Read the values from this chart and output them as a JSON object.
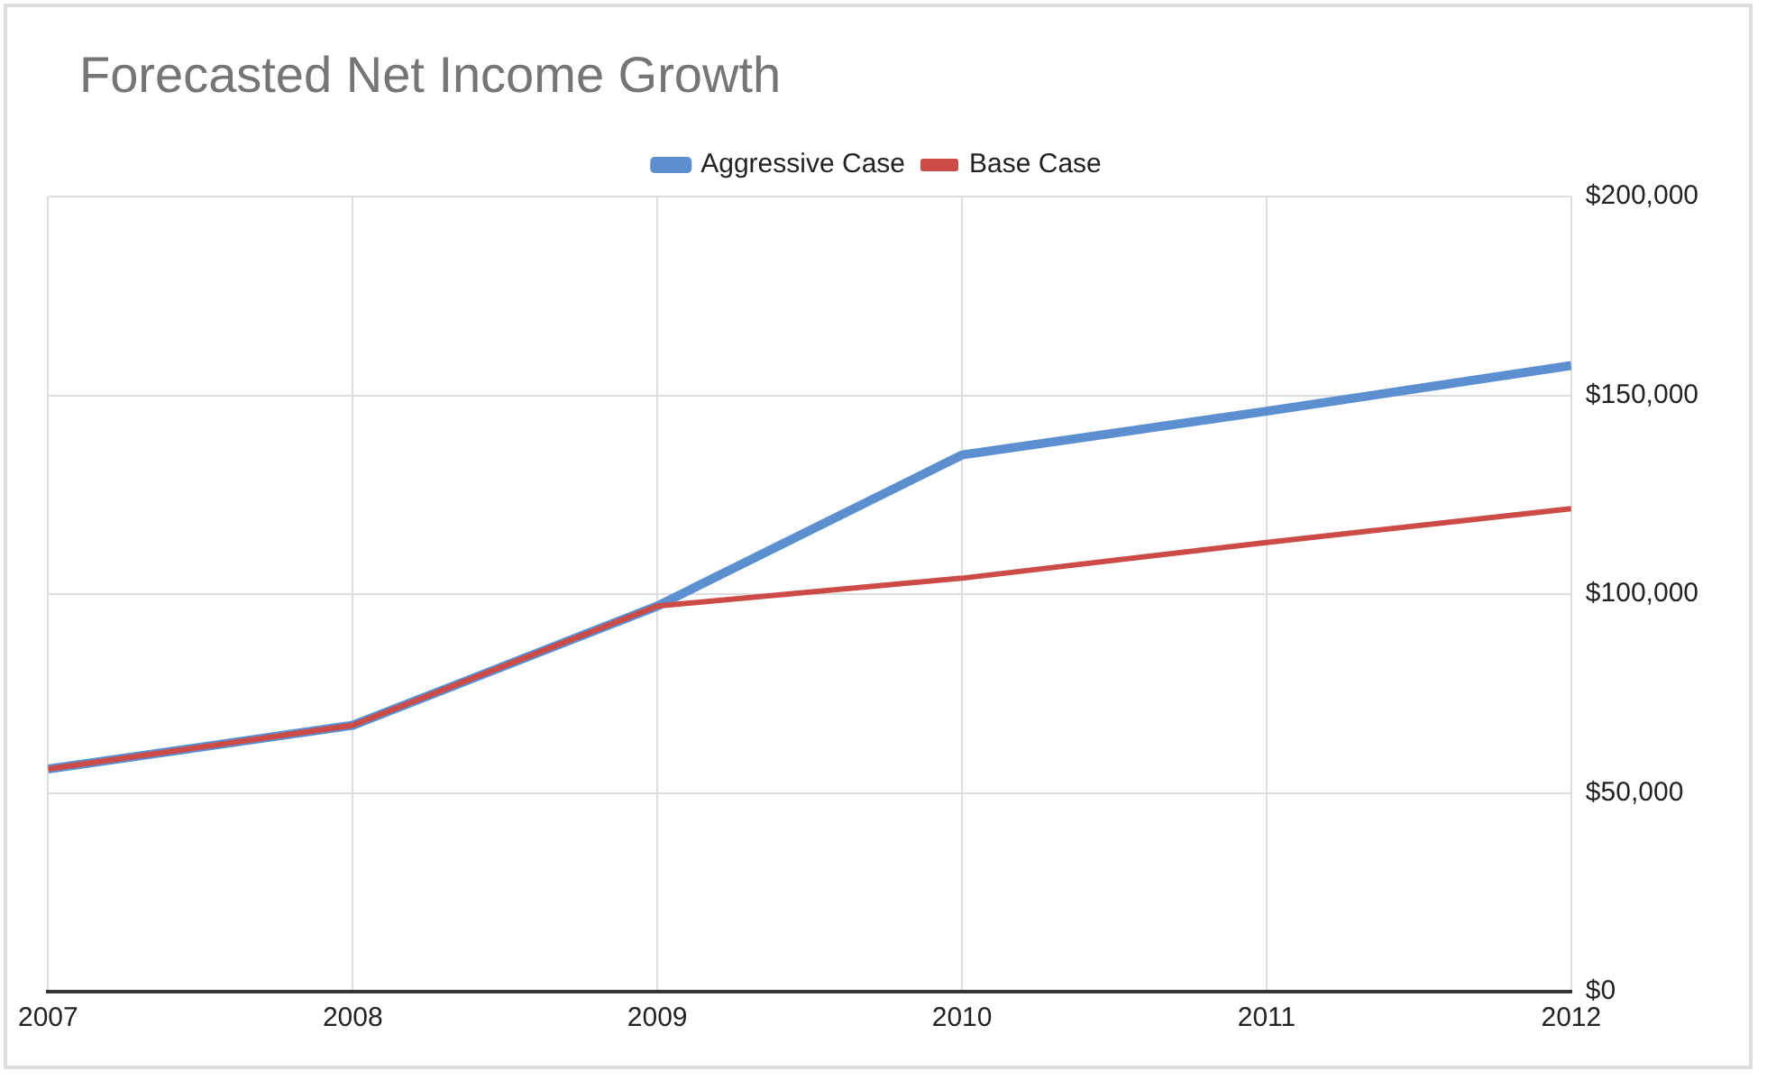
{
  "chart_data": {
    "type": "line",
    "title": "Forecasted Net Income Growth",
    "x": [
      2007,
      2008,
      2009,
      2010,
      2011,
      2012
    ],
    "series": [
      {
        "name": "Aggressive Case",
        "color": "#5b8fd0",
        "values": [
          56000,
          67000,
          97000,
          135000,
          146000,
          157500
        ]
      },
      {
        "name": "Base Case",
        "color": "#cc4b46",
        "values": [
          56000,
          67000,
          97000,
          104000,
          113000,
          121500
        ]
      }
    ],
    "xlim": [
      2007,
      2012
    ],
    "xticks": [
      2007,
      2008,
      2009,
      2010,
      2011,
      2012
    ],
    "ylim": [
      0,
      200000
    ],
    "yticks": [
      {
        "value": 0,
        "label": "$0"
      },
      {
        "value": 50000,
        "label": "$50,000"
      },
      {
        "value": 100000,
        "label": "$100,000"
      },
      {
        "value": 150000,
        "label": "$150,000"
      },
      {
        "value": 200000,
        "label": "$200,000"
      }
    ],
    "grid": true,
    "legend": "top",
    "marker": "none",
    "line_style": "solid"
  }
}
